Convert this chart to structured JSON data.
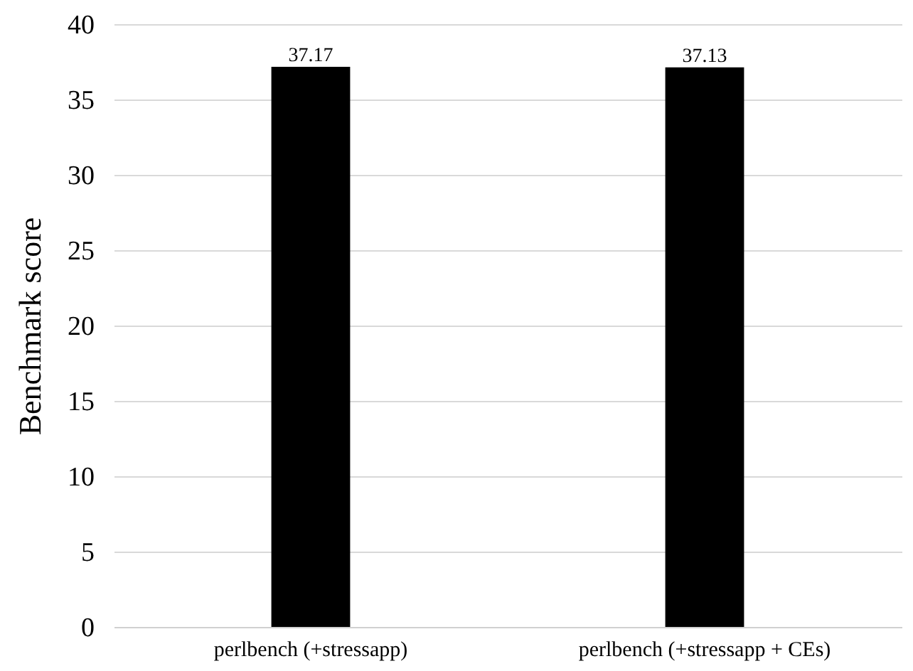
{
  "chart_data": {
    "type": "bar",
    "ylabel": "Benchmark score",
    "categories": [
      "perlbench (+stressapp)",
      "perlbench (+stressapp + CEs)"
    ],
    "values": [
      37.17,
      37.13
    ],
    "color": "#000000",
    "ylim": [
      0,
      40
    ],
    "yticks": [
      0,
      5,
      10,
      15,
      20,
      25,
      30,
      35,
      40
    ],
    "grid": "y",
    "data_labels": true
  }
}
